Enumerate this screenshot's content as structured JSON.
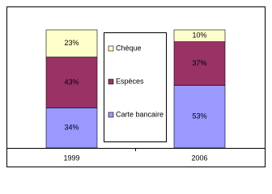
{
  "chart_data": {
    "type": "stacked_bar",
    "categories": [
      "1999",
      "2006"
    ],
    "series": [
      {
        "name": "Carte bancaire",
        "color": "#9999ff",
        "values": [
          34,
          53
        ],
        "value_labels": [
          "34%",
          "53%"
        ]
      },
      {
        "name": "Espèces",
        "color": "#993366",
        "values": [
          43,
          37
        ],
        "value_labels": [
          "43%",
          "37%"
        ]
      },
      {
        "name": "Chèque",
        "color": "#ffffcc",
        "values": [
          23,
          10
        ],
        "value_labels": [
          "23%",
          "10%"
        ]
      }
    ],
    "ylim": [
      0,
      100
    ]
  }
}
